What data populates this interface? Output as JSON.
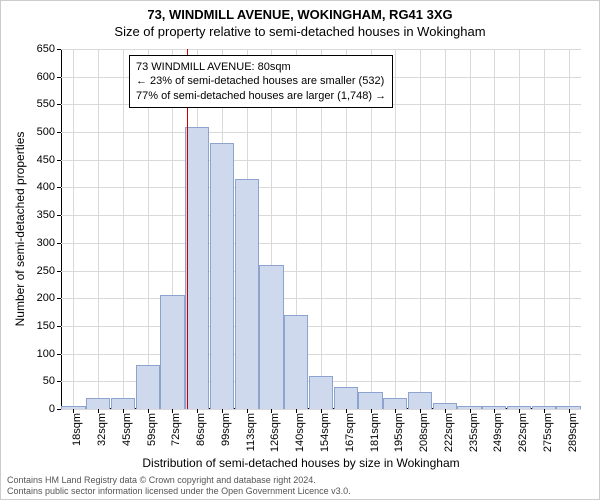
{
  "header": {
    "title_line1": "73, WINDMILL AVENUE, WOKINGHAM, RG41 3XG",
    "title_line2": "Size of property relative to semi-detached houses in Wokingham"
  },
  "chart": {
    "type": "histogram",
    "plot_background": "#ffffff",
    "grid_color": "#d9d9d9",
    "axis_color": "#000000",
    "bar_fill": "#cfd9ee",
    "bar_stroke": "#8fa3cf",
    "bar_stroke_width": 1,
    "reference_line_color": "#cc0000",
    "ylim": [
      0,
      650
    ],
    "ytick_step": 50,
    "yticks": [
      0,
      50,
      100,
      150,
      200,
      250,
      300,
      350,
      400,
      450,
      500,
      550,
      600,
      650
    ],
    "x_categories": [
      "18sqm",
      "32sqm",
      "45sqm",
      "59sqm",
      "72sqm",
      "86sqm",
      "99sqm",
      "113sqm",
      "126sqm",
      "140sqm",
      "154sqm",
      "167sqm",
      "181sqm",
      "195sqm",
      "208sqm",
      "222sqm",
      "235sqm",
      "249sqm",
      "262sqm",
      "275sqm",
      "289sqm"
    ],
    "values": [
      5,
      20,
      20,
      80,
      205,
      510,
      480,
      415,
      260,
      170,
      60,
      40,
      30,
      20,
      30,
      10,
      5,
      5,
      5,
      5,
      5
    ],
    "reference_x_value": 80,
    "reference_category_index_between": [
      4,
      5
    ],
    "reference_fraction_between": 0.57,
    "bar_relative_width": 0.98,
    "ylabel": "Number of semi-detached properties",
    "xlabel": "Distribution of semi-detached houses by size in Wokingham",
    "tick_fontsize": 11,
    "label_fontsize": 12,
    "title_fontsize": 13
  },
  "annotation": {
    "line1": "73 WINDMILL AVENUE: 80sqm",
    "line2": "← 23% of semi-detached houses are smaller (532)",
    "line3": "77% of semi-detached houses are larger (1,748) →",
    "box_border": "#000000",
    "box_bg": "#ffffff",
    "fontsize": 11
  },
  "footer": {
    "line1": "Contains HM Land Registry data © Crown copyright and database right 2024.",
    "line2": "Contains public sector information licensed under the Open Government Licence v3.0.",
    "color": "#555555",
    "fontsize": 9
  }
}
